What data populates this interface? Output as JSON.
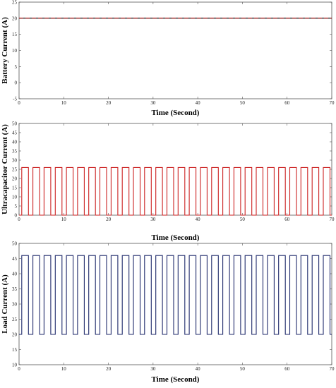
{
  "chart_data": [
    {
      "type": "line",
      "xlabel": "Time (Second)",
      "ylabel": "Battery Current (A)",
      "xlim": [
        0,
        70
      ],
      "ylim": [
        -5,
        25
      ],
      "xticks": [
        "0",
        "10",
        "20",
        "30",
        "40",
        "50",
        "60",
        "70"
      ],
      "yticks": [
        "-5",
        "0",
        "5",
        "10",
        "15",
        "20",
        "25"
      ],
      "grid": false,
      "series": [
        {
          "color": "#000000",
          "style": "solid",
          "x": [
            0,
            70
          ],
          "y": [
            20,
            20
          ]
        },
        {
          "color": "#cc2222",
          "style": "dashed",
          "x": [
            0,
            70
          ],
          "y": [
            20,
            20
          ]
        }
      ]
    },
    {
      "type": "line",
      "xlabel": "Time (Second)",
      "ylabel": "Ultracapacitor Current (A)",
      "xlim": [
        0,
        70
      ],
      "ylim": [
        0,
        50
      ],
      "xticks": [
        "0",
        "10",
        "20",
        "30",
        "40",
        "50",
        "60",
        "70"
      ],
      "yticks": [
        "0",
        "5",
        "10",
        "15",
        "20",
        "25",
        "30",
        "35",
        "40",
        "45",
        "50"
      ],
      "grid": false,
      "series": [
        {
          "color": "#cc2222",
          "style": "square-wave",
          "period_s": 2.5,
          "duty": 0.6,
          "high": 26,
          "low": 0
        }
      ]
    },
    {
      "type": "line",
      "xlabel": "Time (Second)",
      "ylabel": "Load Current (A)",
      "xlim": [
        0,
        70
      ],
      "ylim": [
        10,
        50
      ],
      "xticks": [
        "0",
        "10",
        "20",
        "30",
        "40",
        "50",
        "60",
        "70"
      ],
      "yticks": [
        "10",
        "15",
        "20",
        "25",
        "30",
        "35",
        "40",
        "45",
        "50"
      ],
      "grid": false,
      "series": [
        {
          "color": "#1f2a6b",
          "style": "square-wave",
          "period_s": 2.5,
          "duty": 0.6,
          "high": 46,
          "low": 20
        }
      ]
    }
  ]
}
